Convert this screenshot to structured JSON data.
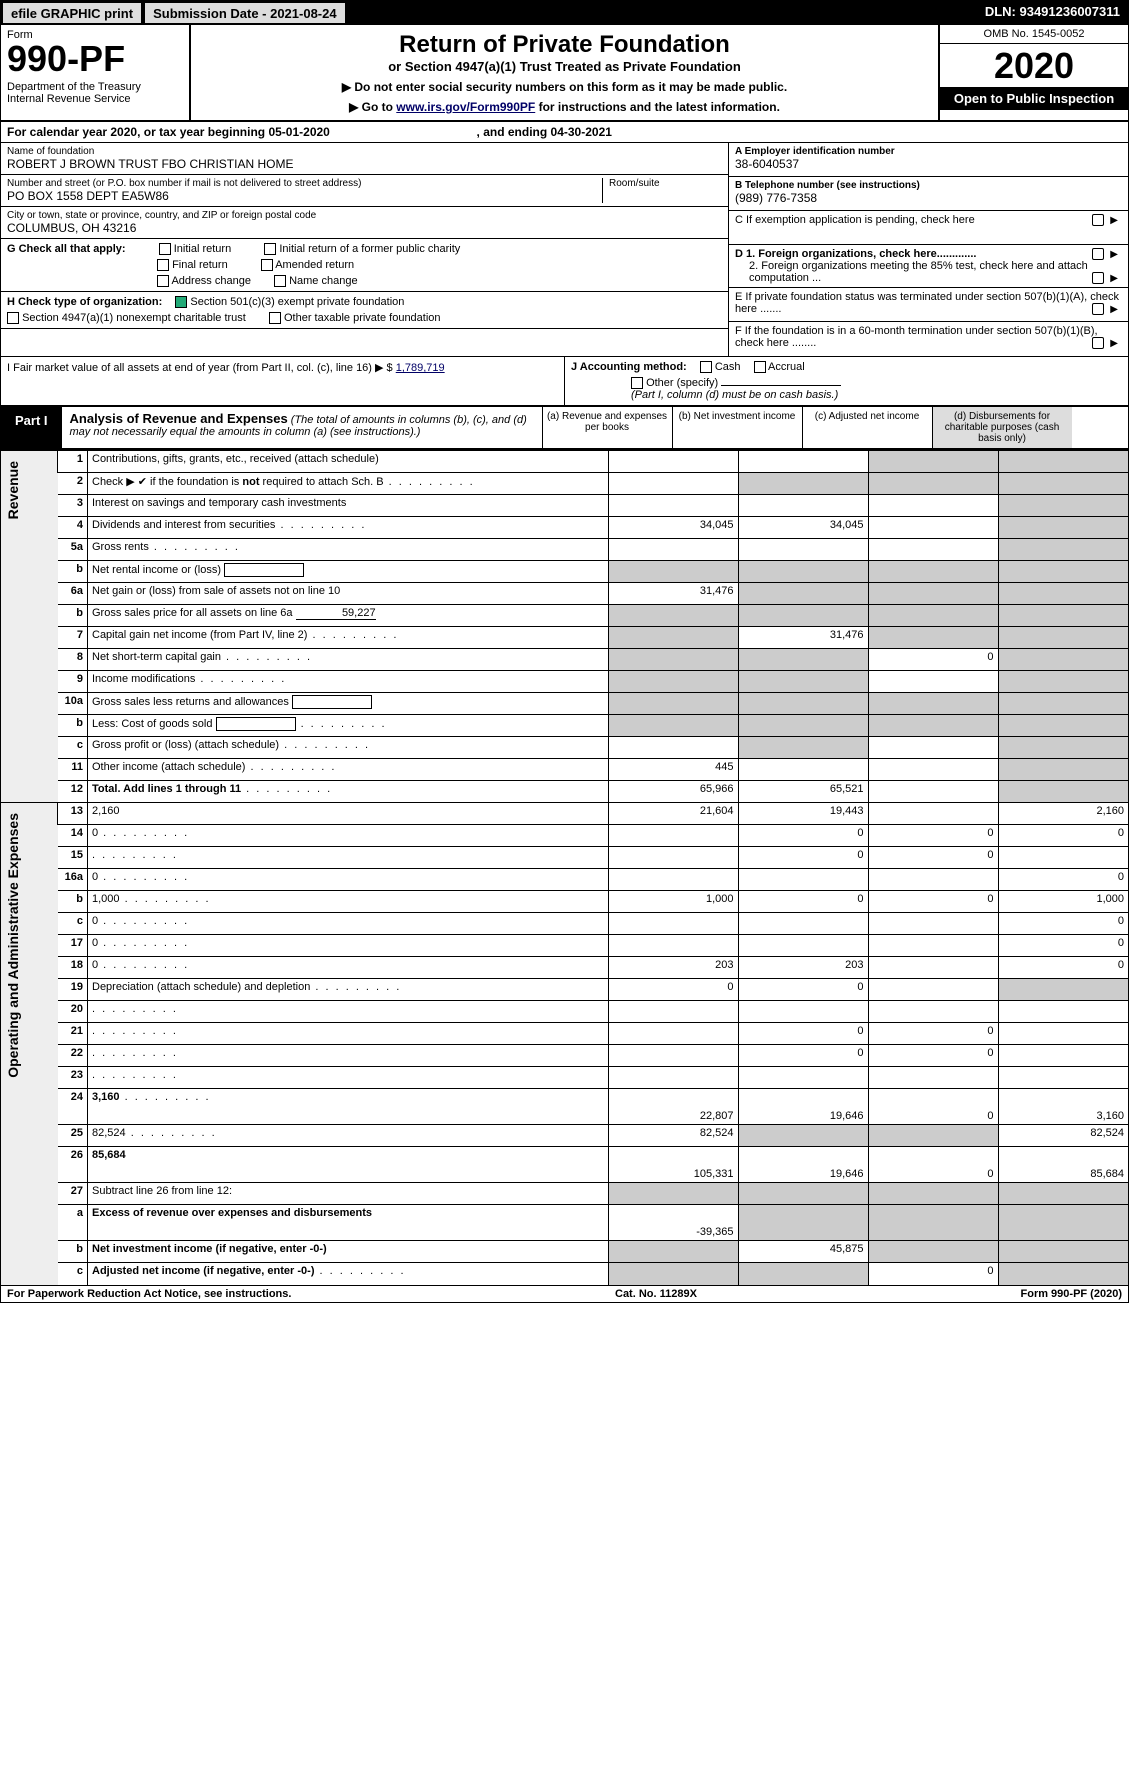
{
  "topbar": {
    "efile": "efile GRAPHIC print",
    "submission": "Submission Date - 2021-08-24",
    "dln": "DLN: 93491236007311"
  },
  "header": {
    "form_word": "Form",
    "form_num": "990-PF",
    "dept": "Department of the Treasury\nInternal Revenue Service",
    "title": "Return of Private Foundation",
    "subtitle": "or Section 4947(a)(1) Trust Treated as Private Foundation",
    "note1": "▶ Do not enter social security numbers on this form as it may be made public.",
    "note2_pre": "▶ Go to ",
    "note2_link": "www.irs.gov/Form990PF",
    "note2_post": " for instructions and the latest information.",
    "omb": "OMB No. 1545-0052",
    "year": "2020",
    "open": "Open to Public Inspection"
  },
  "cal": {
    "text_pre": "For calendar year 2020, or tax year beginning ",
    "begin": "05-01-2020",
    "mid": " , and ending ",
    "end": "04-30-2021"
  },
  "info": {
    "name_lab": "Name of foundation",
    "name_val": "ROBERT J BROWN TRUST FBO CHRISTIAN HOME",
    "addr_lab": "Number and street (or P.O. box number if mail is not delivered to street address)",
    "addr_val": "PO BOX 1558 DEPT EA5W86",
    "room_lab": "Room/suite",
    "city_lab": "City or town, state or province, country, and ZIP or foreign postal code",
    "city_val": "COLUMBUS, OH  43216",
    "a_lab": "A Employer identification number",
    "a_val": "38-6040537",
    "b_lab": "B Telephone number (see instructions)",
    "b_val": "(989) 776-7358",
    "c_lab": "C If exemption application is pending, check here",
    "d1": "D 1. Foreign organizations, check here.............",
    "d2": "2. Foreign organizations meeting the 85% test, check here and attach computation ...",
    "e": "E  If private foundation status was terminated under section 507(b)(1)(A), check here .......",
    "f": "F  If the foundation is in a 60-month termination under section 507(b)(1)(B), check here ........"
  },
  "g": {
    "label": "G Check all that apply:",
    "opts": [
      "Initial return",
      "Initial return of a former public charity",
      "Final return",
      "Amended return",
      "Address change",
      "Name change"
    ]
  },
  "h": {
    "label": "H Check type of organization:",
    "o1": "Section 501(c)(3) exempt private foundation",
    "o2": "Section 4947(a)(1) nonexempt charitable trust",
    "o3": "Other taxable private foundation"
  },
  "i": {
    "label_pre": "I Fair market value of all assets at end of year (from Part II, col. (c), line 16) ▶ $ ",
    "value": "1,789,719"
  },
  "j": {
    "label": "J Accounting method:",
    "cash": "Cash",
    "accrual": "Accrual",
    "other": "Other (specify)",
    "note": "(Part I, column (d) must be on cash basis.)"
  },
  "part1": {
    "tag": "Part I",
    "title": "Analysis of Revenue and Expenses",
    "note": "(The total of amounts in columns (b), (c), and (d) may not necessarily equal the amounts in column (a) (see instructions).)",
    "cols": {
      "a": "(a)   Revenue and expenses per books",
      "b": "(b)   Net investment income",
      "c": "(c)   Adjusted net income",
      "d": "(d)   Disbursements for charitable purposes (cash basis only)"
    }
  },
  "rev_label": "Revenue",
  "exp_label": "Operating and Administrative Expenses",
  "rows": [
    {
      "n": "1",
      "d": "Contributions, gifts, grants, etc., received (attach schedule)",
      "a": "",
      "b": "",
      "c_s": true,
      "d_s": true
    },
    {
      "n": "2",
      "d": "Check ▶ ✔ if the foundation is not required to attach Sch. B",
      "dots": true,
      "a": "",
      "b_s": true,
      "c_s": true,
      "d_s": true,
      "bold_not": true
    },
    {
      "n": "3",
      "d": "Interest on savings and temporary cash investments",
      "a": "",
      "b": "",
      "c": "",
      "d_s": true
    },
    {
      "n": "4",
      "d": "Dividends and interest from securities",
      "dots": true,
      "a": "34,045",
      "b": "34,045",
      "c": "",
      "d_s": true
    },
    {
      "n": "5a",
      "d": "Gross rents",
      "dots": true,
      "a": "",
      "b": "",
      "c": "",
      "d_s": true
    },
    {
      "n": "b",
      "d": "Net rental income or (loss)",
      "inlinebox": true,
      "a_s": true,
      "b_s": true,
      "c_s": true,
      "d_s": true
    },
    {
      "n": "6a",
      "d": "Net gain or (loss) from sale of assets not on line 10",
      "a": "31,476",
      "b_s": true,
      "c_s": true,
      "d_s": true
    },
    {
      "n": "b",
      "d": "Gross sales price for all assets on line 6a",
      "inlineval": "59,227",
      "a_s": true,
      "b_s": true,
      "c_s": true,
      "d_s": true
    },
    {
      "n": "7",
      "d": "Capital gain net income (from Part IV, line 2)",
      "dots": true,
      "a_s": true,
      "b": "31,476",
      "c_s": true,
      "d_s": true
    },
    {
      "n": "8",
      "d": "Net short-term capital gain",
      "dots": true,
      "a_s": true,
      "b_s": true,
      "c": "0",
      "d_s": true
    },
    {
      "n": "9",
      "d": "Income modifications",
      "dots": true,
      "a_s": true,
      "b_s": true,
      "c": "",
      "d_s": true
    },
    {
      "n": "10a",
      "d": "Gross sales less returns and allowances",
      "inlinebox": true,
      "a_s": true,
      "b_s": true,
      "c_s": true,
      "d_s": true
    },
    {
      "n": "b",
      "d": "Less: Cost of goods sold",
      "dots": true,
      "inlinebox": true,
      "a_s": true,
      "b_s": true,
      "c_s": true,
      "d_s": true
    },
    {
      "n": "c",
      "d": "Gross profit or (loss) (attach schedule)",
      "dots": true,
      "a": "",
      "b_s": true,
      "c": "",
      "d_s": true
    },
    {
      "n": "11",
      "d": "Other income (attach schedule)",
      "dots": true,
      "a": "445",
      "b": "",
      "c": "",
      "d_s": true
    },
    {
      "n": "12",
      "d": "Total. Add lines 1 through 11",
      "dots": true,
      "bold": true,
      "a": "65,966",
      "b": "65,521",
      "c": "",
      "d_s": true
    },
    {
      "n": "13",
      "d": "2,160",
      "a": "21,604",
      "b": "19,443",
      "c": "",
      "sec": "exp"
    },
    {
      "n": "14",
      "d": "0",
      "dots": true,
      "a": "",
      "b": "0",
      "c": "0"
    },
    {
      "n": "15",
      "d": "",
      "dots": true,
      "a": "",
      "b": "0",
      "c": "0"
    },
    {
      "n": "16a",
      "d": "0",
      "dots": true,
      "a": "",
      "b": "",
      "c": ""
    },
    {
      "n": "b",
      "d": "1,000",
      "dots": true,
      "a": "1,000",
      "b": "0",
      "c": "0"
    },
    {
      "n": "c",
      "d": "0",
      "dots": true,
      "a": "",
      "b": "",
      "c": ""
    },
    {
      "n": "17",
      "d": "0",
      "dots": true,
      "a": "",
      "b": "",
      "c": ""
    },
    {
      "n": "18",
      "d": "0",
      "dots": true,
      "a": "203",
      "b": "203",
      "c": ""
    },
    {
      "n": "19",
      "d": "Depreciation (attach schedule) and depletion",
      "dots": true,
      "a": "0",
      "b": "0",
      "c": "",
      "d_s": true
    },
    {
      "n": "20",
      "d": "",
      "dots": true,
      "a": "",
      "b": "",
      "c": ""
    },
    {
      "n": "21",
      "d": "",
      "dots": true,
      "a": "",
      "b": "0",
      "c": "0"
    },
    {
      "n": "22",
      "d": "",
      "dots": true,
      "a": "",
      "b": "0",
      "c": "0"
    },
    {
      "n": "23",
      "d": "",
      "dots": true,
      "a": "",
      "b": "",
      "c": ""
    },
    {
      "n": "24",
      "d": "3,160",
      "dots": true,
      "bold": true,
      "a": "22,807",
      "b": "19,646",
      "c": "0",
      "tall": true
    },
    {
      "n": "25",
      "d": "82,524",
      "dots": true,
      "a": "82,524",
      "b_s": true,
      "c_s": true
    },
    {
      "n": "26",
      "d": "85,684",
      "bold": true,
      "a": "105,331",
      "b": "19,646",
      "c": "0",
      "tall": true
    },
    {
      "n": "27",
      "d": "Subtract line 26 from line 12:",
      "a_s": true,
      "b_s": true,
      "c_s": true,
      "d_s": true
    },
    {
      "n": "a",
      "d": "Excess of revenue over expenses and disbursements",
      "bold": true,
      "a": "-39,365",
      "b_s": true,
      "c_s": true,
      "d_s": true,
      "tall": true
    },
    {
      "n": "b",
      "d": "Net investment income (if negative, enter -0-)",
      "bold": true,
      "a_s": true,
      "b": "45,875",
      "c_s": true,
      "d_s": true
    },
    {
      "n": "c",
      "d": "Adjusted net income (if negative, enter -0-)",
      "bold": true,
      "dots": true,
      "a_s": true,
      "b_s": true,
      "c": "0",
      "d_s": true
    }
  ],
  "footer": {
    "left": "For Paperwork Reduction Act Notice, see instructions.",
    "mid": "Cat. No. 11289X",
    "right": "Form 990-PF (2020)"
  },
  "colors": {
    "link": "#0000aa",
    "shade": "#cccccc",
    "check": "#22aa66"
  }
}
